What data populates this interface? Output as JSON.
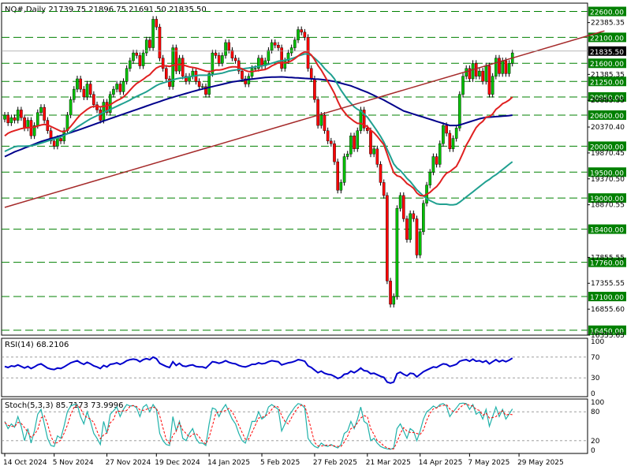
{
  "chart_data": [
    {
      "type": "candlestick",
      "header": "NQ#,Daily  21739.75 21896.75 21691.50 21835.50",
      "ylim": [
        16355,
        22760
      ],
      "price_ticks": [
        "22385.35",
        "21385.35",
        "20885.35",
        "20370.40",
        "19870.45",
        "19370.50",
        "18870.55",
        "17855.55",
        "17355.55",
        "16855.60",
        "16355.65"
      ],
      "levels": [
        {
          "value": 22600,
          "label": "22600.00"
        },
        {
          "value": 22100,
          "label": "22100.00"
        },
        {
          "value": 21600,
          "label": "21600.00"
        },
        {
          "value": 21250,
          "label": "21250.00"
        },
        {
          "value": 20950,
          "label": "20950.00"
        },
        {
          "value": 20600,
          "label": "20600.00"
        },
        {
          "value": 20000,
          "label": "20000.00"
        },
        {
          "value": 19500,
          "label": "19500.00"
        },
        {
          "value": 19000,
          "label": "19000.00"
        },
        {
          "value": 18400,
          "label": "18400.00"
        },
        {
          "value": 17760,
          "label": "17760.00"
        },
        {
          "value": 17100,
          "label": "17100.00"
        },
        {
          "value": 16450,
          "label": "16450.00"
        }
      ],
      "current": {
        "value": 21835.5,
        "label": "21835.50"
      },
      "closes": [
        20600,
        20450,
        20550,
        20500,
        20700,
        20550,
        20350,
        20500,
        20200,
        20400,
        20650,
        20750,
        20500,
        20300,
        20100,
        20000,
        20150,
        20100,
        20300,
        20600,
        20900,
        21100,
        21300,
        21100,
        20950,
        21200,
        21000,
        20800,
        20700,
        20500,
        20850,
        20650,
        21000,
        21100,
        21200,
        21050,
        21250,
        21500,
        21650,
        21800,
        21750,
        21550,
        21800,
        22050,
        21900,
        22450,
        22300,
        21700,
        21500,
        21300,
        21150,
        21900,
        21450,
        21700,
        21350,
        21250,
        21350,
        21450,
        21250,
        21150,
        21150,
        21000,
        21400,
        21800,
        21750,
        21600,
        21750,
        22000,
        21850,
        21700,
        21650,
        21450,
        21300,
        21200,
        21350,
        21500,
        21500,
        21700,
        21550,
        21650,
        21850,
        22000,
        21950,
        21900,
        21500,
        21650,
        21800,
        21900,
        22050,
        22250,
        22200,
        22100,
        21500,
        21300,
        20900,
        20400,
        20600,
        20300,
        20100,
        20050,
        19700,
        19150,
        19300,
        19800,
        19850,
        20200,
        19950,
        20300,
        20700,
        20350,
        20300,
        19850,
        19950,
        19650,
        19300,
        19050,
        17400,
        16950,
        17100,
        18800,
        19050,
        18600,
        18200,
        18700,
        18600,
        17900,
        18350,
        18900,
        19250,
        19500,
        19800,
        19650,
        20050,
        20400,
        20250,
        19950,
        20150,
        20350,
        21000,
        21350,
        21500,
        21300,
        21600,
        21350,
        21450,
        21250,
        21550,
        21000,
        21350,
        21700,
        21400,
        21650,
        21400,
        21600,
        21800
      ],
      "sma_slow": [
        19800,
        19830,
        19860,
        19890,
        19915,
        19940,
        19965,
        19990,
        20015,
        20040,
        20065,
        20090,
        20110,
        20130,
        20150,
        20168,
        20186,
        20204,
        20222,
        20240,
        20262,
        20284,
        20306,
        20328,
        20350,
        20373,
        20396,
        20419,
        20442,
        20465,
        20488,
        20510,
        20532,
        20554,
        20576,
        20598,
        20620,
        20642,
        20664,
        20686,
        20708,
        20730,
        20752,
        20774,
        20796,
        20818,
        20840,
        20862,
        20884,
        20906,
        20925,
        20944,
        20963,
        20982,
        21000,
        21018,
        21036,
        21054,
        21072,
        21090,
        21105,
        21120,
        21135,
        21150,
        21165,
        21180,
        21195,
        21210,
        21225,
        21240,
        21250,
        21260,
        21270,
        21280,
        21290,
        21297,
        21304,
        21311,
        21318,
        21325,
        21330,
        21333,
        21335,
        21336,
        21337,
        21333,
        21329,
        21325,
        21321,
        21317,
        21313,
        21309,
        21305,
        21301,
        21297,
        21293,
        21289,
        21280,
        21270,
        21260,
        21250,
        21233,
        21216,
        21199,
        21182,
        21165,
        21140,
        21115,
        21090,
        21065,
        21040,
        21010,
        20980,
        20950,
        20920,
        20890,
        20855,
        20820,
        20785,
        20750,
        20715,
        20680,
        20660,
        20640,
        20620,
        20600,
        20580,
        20560,
        20540,
        20520,
        20500,
        20480,
        20460,
        20440,
        20420,
        20400,
        20400,
        20400,
        20410,
        20430,
        20450,
        20470,
        20490,
        20510,
        20530,
        20545,
        20555,
        20560,
        20565,
        20570,
        20575,
        20580,
        20585,
        20590,
        20600
      ],
      "ema_mid": [
        19900,
        19930,
        19960,
        19990,
        20000,
        20000,
        20000,
        20005,
        20010,
        20020,
        20040,
        20060,
        20080,
        20100,
        20120,
        20140,
        20160,
        20180,
        20210,
        20240,
        20280,
        20320,
        20370,
        20410,
        20450,
        20490,
        20530,
        20560,
        20590,
        20620,
        20650,
        20680,
        20710,
        20740,
        20770,
        20800,
        20830,
        20860,
        20890,
        20930,
        20960,
        20990,
        21020,
        21050,
        21090,
        21130,
        21170,
        21200,
        21220,
        21240,
        21260,
        21280,
        21300,
        21310,
        21320,
        21330,
        21340,
        21350,
        21360,
        21370,
        21370,
        21370,
        21370,
        21380,
        21390,
        21400,
        21410,
        21430,
        21450,
        21460,
        21470,
        21480,
        21490,
        21500,
        21510,
        21520,
        21530,
        21540,
        21550,
        21560,
        21580,
        21600,
        21620,
        21640,
        21650,
        21660,
        21670,
        21690,
        21710,
        21740,
        21760,
        21780,
        21780,
        21750,
        21700,
        21640,
        21580,
        21500,
        21440,
        21380,
        21300,
        21190,
        21080,
        20990,
        20900,
        20830,
        20760,
        20710,
        20680,
        20620,
        20560,
        20470,
        20380,
        20290,
        20190,
        20080,
        19940,
        19800,
        19660,
        19580,
        19530,
        19460,
        19380,
        19320,
        19240,
        19160,
        19100,
        19040,
        18990,
        18950,
        18920,
        18890,
        18880,
        18880,
        18880,
        18870,
        18870,
        18880,
        18920,
        18970,
        19020,
        19070,
        19120,
        19170,
        19220,
        19270,
        19320,
        19360,
        19410,
        19450,
        19500,
        19550,
        19600,
        19650,
        19700
      ],
      "ema_fast": [
        20200,
        20250,
        20280,
        20300,
        20320,
        20340,
        20350,
        20360,
        20360,
        20370,
        20390,
        20410,
        20420,
        20410,
        20380,
        20350,
        20320,
        20290,
        20280,
        20310,
        20380,
        20460,
        20540,
        20610,
        20660,
        20710,
        20750,
        20770,
        20770,
        20760,
        20770,
        20780,
        20800,
        20840,
        20880,
        20910,
        20950,
        21010,
        21080,
        21150,
        21210,
        21250,
        21290,
        21340,
        21380,
        21450,
        21510,
        21540,
        21550,
        21550,
        21540,
        21560,
        21570,
        21580,
        21570,
        21550,
        21530,
        21520,
        21510,
        21490,
        21470,
        21450,
        21440,
        21450,
        21470,
        21470,
        21480,
        21500,
        21520,
        21530,
        21530,
        21520,
        21490,
        21460,
        21440,
        21440,
        21450,
        21460,
        21470,
        21480,
        21510,
        21550,
        21580,
        21610,
        21610,
        21610,
        21620,
        21650,
        21690,
        21740,
        21790,
        21820,
        21810,
        21760,
        21670,
        21560,
        21470,
        21360,
        21250,
        21140,
        21020,
        20870,
        20740,
        20660,
        20580,
        20530,
        20480,
        20440,
        20440,
        20410,
        20380,
        20310,
        20260,
        20190,
        20110,
        20030,
        19850,
        19660,
        19490,
        19430,
        19410,
        19350,
        19280,
        19240,
        19190,
        19100,
        19050,
        19040,
        19070,
        19110,
        19170,
        19220,
        19300,
        19400,
        19480,
        19510,
        19560,
        19610,
        19730,
        19870,
        20020,
        20130,
        20250,
        20360,
        20430,
        20480,
        20560,
        20570,
        20620,
        20710,
        20760,
        20820,
        20850,
        20890,
        20950
      ],
      "trendline": {
        "from": {
          "index": 0,
          "value": 18820
        },
        "to": {
          "index": 158,
          "value": 22225
        }
      },
      "x_ticks": [
        {
          "index": 0,
          "label": "14 Oct 2024"
        },
        {
          "index": 15,
          "label": "5 Nov 2024"
        },
        {
          "index": 31,
          "label": "27 Nov 2024"
        },
        {
          "index": 46,
          "label": "19 Dec 2024"
        },
        {
          "index": 62,
          "label": "14 Jan 2025"
        },
        {
          "index": 78,
          "label": "5 Feb 2025"
        },
        {
          "index": 94,
          "label": "27 Feb 2025"
        },
        {
          "index": 110,
          "label": "21 Mar 2025"
        },
        {
          "index": 126,
          "label": "14 Apr 2025"
        },
        {
          "index": 141,
          "label": "7 May 2025"
        },
        {
          "index": 156,
          "label": "29 May 2025"
        }
      ]
    },
    {
      "type": "line",
      "title": "RSI(14) 68.2106",
      "ylim": [
        0,
        100
      ],
      "ticks": [
        "100",
        "70",
        "30",
        "0"
      ],
      "levels": [
        70,
        30
      ],
      "values": [
        52,
        50,
        53,
        52,
        55,
        52,
        49,
        52,
        48,
        51,
        55,
        57,
        53,
        49,
        47,
        46,
        49,
        48,
        51,
        55,
        59,
        61,
        63,
        59,
        56,
        60,
        57,
        53,
        51,
        48,
        54,
        51,
        56,
        57,
        59,
        56,
        59,
        63,
        65,
        66,
        65,
        61,
        65,
        67,
        65,
        70,
        67,
        58,
        55,
        52,
        50,
        61,
        54,
        58,
        53,
        52,
        54,
        55,
        52,
        51,
        51,
        49,
        55,
        61,
        60,
        58,
        60,
        63,
        60,
        58,
        57,
        54,
        52,
        51,
        53,
        56,
        56,
        59,
        57,
        58,
        61,
        63,
        62,
        61,
        55,
        57,
        59,
        60,
        62,
        65,
        64,
        62,
        53,
        50,
        45,
        40,
        43,
        39,
        37,
        36,
        33,
        29,
        31,
        37,
        38,
        43,
        40,
        44,
        49,
        44,
        43,
        38,
        39,
        36,
        33,
        31,
        22,
        20,
        22,
        38,
        41,
        37,
        34,
        39,
        38,
        32,
        37,
        42,
        45,
        48,
        51,
        50,
        54,
        57,
        56,
        52,
        54,
        56,
        62,
        64,
        65,
        62,
        66,
        62,
        63,
        60,
        63,
        57,
        61,
        65,
        61,
        64,
        61,
        64,
        68
      ]
    },
    {
      "type": "line",
      "title": "Stoch(5,3,3) 85.7173 73.9996",
      "ylim": [
        0,
        100
      ],
      "ticks": [
        "100",
        "80",
        "20",
        "0"
      ],
      "levels": [
        80,
        20
      ],
      "k": [
        60,
        45,
        55,
        48,
        70,
        50,
        20,
        45,
        15,
        40,
        75,
        85,
        55,
        25,
        10,
        8,
        30,
        25,
        50,
        80,
        92,
        95,
        95,
        70,
        55,
        80,
        60,
        35,
        25,
        12,
        60,
        35,
        75,
        82,
        90,
        70,
        85,
        95,
        92,
        93,
        88,
        70,
        90,
        95,
        80,
        95,
        85,
        35,
        20,
        12,
        10,
        70,
        40,
        60,
        25,
        20,
        35,
        45,
        25,
        15,
        15,
        10,
        55,
        88,
        85,
        70,
        85,
        95,
        80,
        65,
        55,
        35,
        20,
        15,
        35,
        60,
        60,
        80,
        65,
        70,
        90,
        95,
        90,
        85,
        40,
        55,
        70,
        80,
        90,
        97,
        95,
        88,
        25,
        15,
        8,
        5,
        15,
        10,
        8,
        12,
        8,
        5,
        12,
        35,
        40,
        60,
        45,
        65,
        90,
        60,
        55,
        20,
        25,
        15,
        8,
        5,
        3,
        2,
        5,
        45,
        55,
        40,
        25,
        45,
        40,
        20,
        40,
        65,
        80,
        85,
        92,
        88,
        95,
        97,
        92,
        70,
        80,
        88,
        97,
        98,
        97,
        85,
        95,
        75,
        80,
        65,
        85,
        50,
        70,
        90,
        70,
        85,
        65,
        75,
        86
      ],
      "d": [
        58,
        52,
        50,
        49,
        58,
        56,
        47,
        38,
        27,
        33,
        43,
        67,
        72,
        55,
        30,
        14,
        16,
        21,
        35,
        52,
        74,
        89,
        94,
        87,
        73,
        68,
        65,
        58,
        40,
        24,
        32,
        36,
        57,
        64,
        82,
        81,
        82,
        83,
        91,
        93,
        91,
        84,
        83,
        85,
        88,
        90,
        87,
        72,
        47,
        22,
        14,
        31,
        40,
        57,
        42,
        35,
        27,
        33,
        35,
        28,
        18,
        13,
        27,
        51,
        76,
        81,
        80,
        83,
        87,
        80,
        67,
        52,
        37,
        23,
        23,
        37,
        52,
        67,
        68,
        72,
        75,
        85,
        92,
        90,
        72,
        60,
        55,
        68,
        80,
        89,
        94,
        93,
        69,
        43,
        16,
        9,
        9,
        10,
        11,
        10,
        9,
        8,
        8,
        17,
        29,
        45,
        48,
        57,
        67,
        72,
        70,
        45,
        33,
        20,
        16,
        9,
        5,
        3,
        3,
        17,
        35,
        47,
        40,
        37,
        37,
        35,
        33,
        42,
        62,
        77,
        86,
        88,
        92,
        93,
        95,
        86,
        81,
        79,
        88,
        94,
        97,
        93,
        92,
        85,
        83,
        73,
        77,
        67,
        68,
        70,
        77,
        82,
        73,
        75,
        74
      ]
    }
  ]
}
